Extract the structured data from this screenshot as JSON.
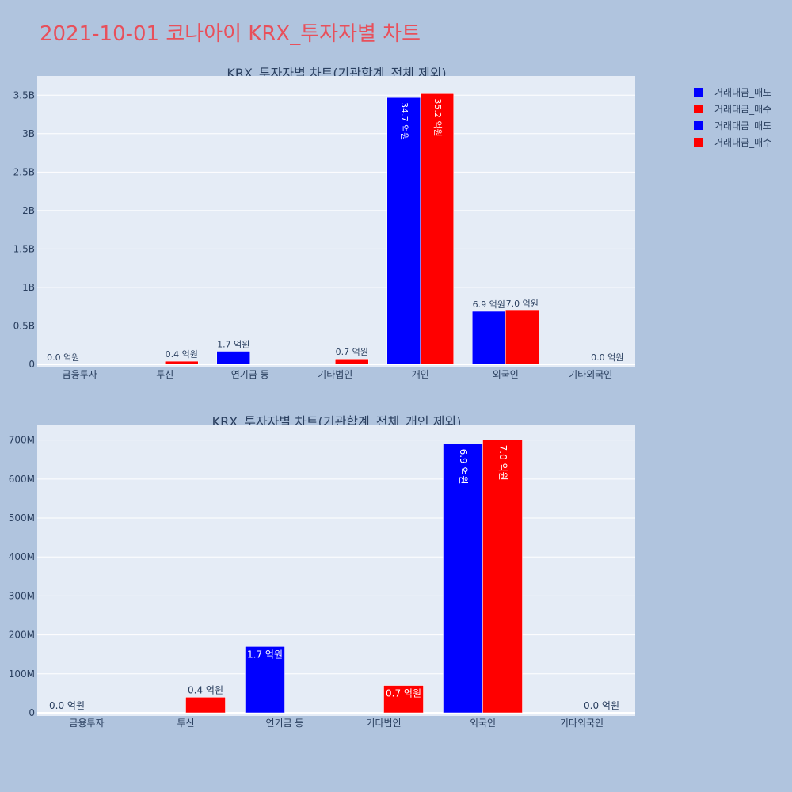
{
  "page": {
    "title": "2021-10-01 코나아이 KRX_투자자별 차트",
    "background": "#b0c4de",
    "plot_background": "#e5ecf6",
    "title_color": "#e8505b"
  },
  "legend": [
    {
      "label": "거래대금_매도",
      "color": "#0000ff"
    },
    {
      "label": "거래대금_매수",
      "color": "#ff0000"
    },
    {
      "label": "거래대금_매도",
      "color": "#0000ff"
    },
    {
      "label": "거래대금_매수",
      "color": "#ff0000"
    }
  ],
  "chart_data": [
    {
      "type": "bar",
      "title": "KRX_투자자별 차트(기관합계_전체 제외)",
      "categories": [
        "금융투자",
        "투신",
        "연기금 등",
        "기타법인",
        "개인",
        "외국인",
        "기타외국인"
      ],
      "series": [
        {
          "name": "거래대금_매도",
          "color": "#0000ff",
          "values": [
            0,
            0,
            170000000,
            0,
            3470000000,
            690000000,
            0
          ],
          "labels": [
            "0.0 억원",
            "",
            "1.7 억원",
            "",
            "34.7 억원",
            "6.9 억원",
            ""
          ]
        },
        {
          "name": "거래대금_매수",
          "color": "#ff0000",
          "values": [
            0,
            40000000,
            0,
            70000000,
            3520000000,
            700000000,
            0
          ],
          "labels": [
            "",
            "0.4 억원",
            "",
            "0.7 억원",
            "35.2 억원",
            "7.0 억원",
            "0.0 억원"
          ]
        }
      ],
      "ylim": [
        0,
        3750000000
      ],
      "yticks": [
        0,
        500000000,
        1000000000,
        1500000000,
        2000000000,
        2500000000,
        3000000000,
        3500000000
      ],
      "ytick_labels": [
        "0",
        "0.5B",
        "1B",
        "1.5B",
        "2B",
        "2.5B",
        "3B",
        "3.5B"
      ],
      "grid": true
    },
    {
      "type": "bar",
      "title": "KRX_투자자별 차트(기관합계_전체_개인 제외)",
      "categories": [
        "금융투자",
        "투신",
        "연기금 등",
        "기타법인",
        "외국인",
        "기타외국인"
      ],
      "series": [
        {
          "name": "거래대금_매도",
          "color": "#0000ff",
          "values": [
            0,
            0,
            170000000,
            0,
            690000000,
            0
          ],
          "labels": [
            "0.0 억원",
            "",
            "1.7 억원",
            "",
            "6.9 억원",
            ""
          ]
        },
        {
          "name": "거래대금_매수",
          "color": "#ff0000",
          "values": [
            0,
            40000000,
            0,
            70000000,
            700000000,
            0
          ],
          "labels": [
            "",
            "0.4 억원",
            "",
            "0.7 억원",
            "7.0 억원",
            "0.0 억원"
          ]
        }
      ],
      "ylim": [
        0,
        740000000
      ],
      "yticks": [
        0,
        100000000,
        200000000,
        300000000,
        400000000,
        500000000,
        600000000,
        700000000
      ],
      "ytick_labels": [
        "0",
        "100M",
        "200M",
        "300M",
        "400M",
        "500M",
        "600M",
        "700M"
      ],
      "grid": true
    }
  ]
}
